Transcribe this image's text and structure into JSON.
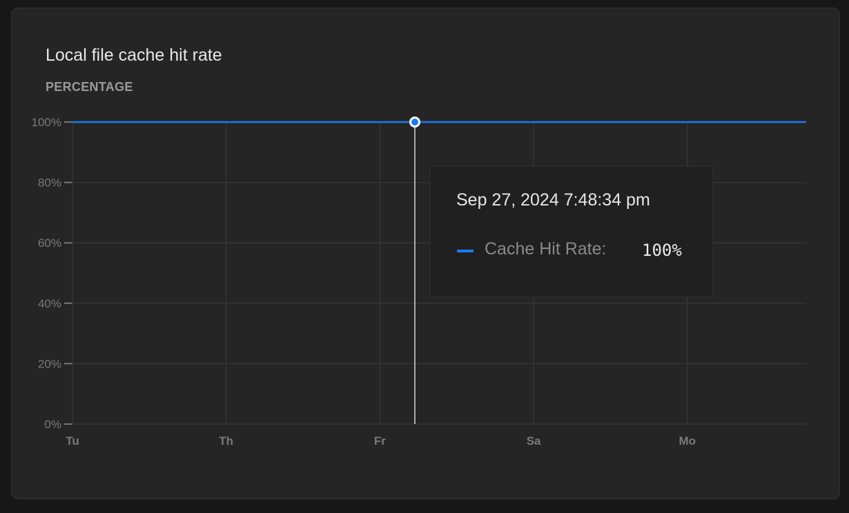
{
  "card": {
    "title": "Local file cache hit rate",
    "subtitle": "PERCENTAGE"
  },
  "colors": {
    "series": "#1a7cf5",
    "grid": "#353535",
    "cursor": "#d8d8d8"
  },
  "chart_data": {
    "type": "line",
    "x_ticks": [
      "Tu",
      "Th",
      "Fr",
      "Sa",
      "Mo"
    ],
    "y_ticks": [
      "0%",
      "20%",
      "40%",
      "60%",
      "80%",
      "100%"
    ],
    "ylim": [
      0,
      100
    ],
    "grid": true,
    "series": [
      {
        "name": "Cache Hit Rate",
        "values": [
          100,
          100,
          100,
          100,
          100,
          100
        ]
      }
    ],
    "hover": {
      "date": "Sep 27, 2024 7:48:34 pm",
      "label": "Cache Hit Rate:",
      "value": "100%",
      "y": 100
    }
  }
}
